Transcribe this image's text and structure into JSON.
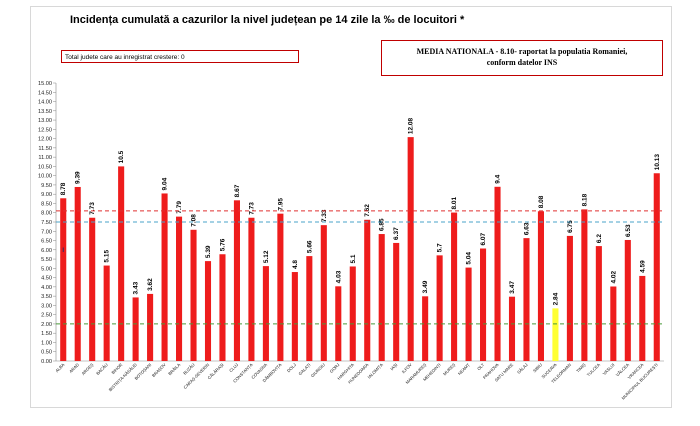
{
  "title": "Incidența cumulată a cazurilor la nivel județean pe 14 zile la ‰ de locuitori *",
  "legend_box": "Total judete care au inregistrat crestere: 0",
  "national_box": {
    "line1": "MEDIA NATIONALA - 8.10-  raportat la populatia Romaniei,",
    "line2": "conform datelor INS"
  },
  "colors": {
    "bar": "#ee1c1c",
    "highlight_bar": "#ffff33",
    "red_line": "#e03030",
    "blue_line": "#4aa3c8",
    "green_line": "#4a9a3a",
    "box_border": "#c00000"
  },
  "chart_data": {
    "type": "bar",
    "categories": [
      "ALBA",
      "ARAD",
      "ARGEȘ",
      "BACĂU",
      "BIHOR",
      "BISTRIȚA-NĂSĂUD",
      "BOTOȘANI",
      "BRAȘOV",
      "BRĂILA",
      "BUZĂU",
      "CARAȘ-SEVERIN",
      "CĂLĂRAȘI",
      "CLUJ",
      "CONSTANȚA",
      "COVASNA",
      "DÂMBOVIȚA",
      "DOLJ",
      "GALAȚI",
      "GIURGIU",
      "GORJ",
      "HARGHITA",
      "HUNEDOARA",
      "IALOMIȚA",
      "IAȘI",
      "ILFOV",
      "MARAMUREȘ",
      "MEHEDINȚI",
      "MUREȘ",
      "NEAMȚ",
      "OLT",
      "PRAHOVA",
      "SATU MARE",
      "SĂLAJ",
      "SIBIU",
      "SUCEAVA",
      "TELEORMAN",
      "TIMIȘ",
      "TULCEA",
      "VASLUI",
      "VÂLCEA",
      "VRANCEA",
      "MUNICIPIUL BUCUREȘTI"
    ],
    "values": [
      8.78,
      9.39,
      7.73,
      5.15,
      10.5,
      3.43,
      3.62,
      9.04,
      7.79,
      7.08,
      5.39,
      5.76,
      8.67,
      7.73,
      5.12,
      7.95,
      4.8,
      5.66,
      7.33,
      4.03,
      5.1,
      7.62,
      6.85,
      6.37,
      12.08,
      3.49,
      5.7,
      8.01,
      5.04,
      6.07,
      9.4,
      3.47,
      6.63,
      8.08,
      2.84,
      6.75,
      8.18,
      6.2,
      4.02,
      6.53,
      4.59,
      10.13
    ],
    "labels": [
      "8.78",
      "9.39",
      "7.73",
      "5.15",
      "10.5",
      "3.43",
      "3.62",
      "9.04",
      "7.79",
      "7.08",
      "5.39",
      "5.76",
      "8.67",
      "7.73",
      "5.12",
      "7.95",
      "4.8",
      "5.66",
      "7.33",
      "4.03",
      "5.1",
      "7.62",
      "6.85",
      "6.37",
      "12.08",
      "3.49",
      "5.7",
      "8.01",
      "5.04",
      "6.07",
      "9.4",
      "3.47",
      "6.63",
      "8.08",
      "2.84",
      "6.75",
      "8.18",
      "6.2",
      "4.02",
      "6.53",
      "4.59",
      "10.13"
    ],
    "highlight_index": 34,
    "ylim": [
      0,
      15
    ],
    "ytick_step": 0.5,
    "reference_lines": [
      {
        "value": 8.1,
        "color": "#e03030",
        "style": "dashed"
      },
      {
        "value": 7.5,
        "color": "#4aa3c8",
        "style": "dashed"
      },
      {
        "value": 2.0,
        "color": "#4a9a3a",
        "style": "dashed"
      }
    ],
    "annotation": "I",
    "annotation_index": 0,
    "annotation_value": 6.0,
    "grid": false,
    "xlabel": "",
    "ylabel": ""
  }
}
